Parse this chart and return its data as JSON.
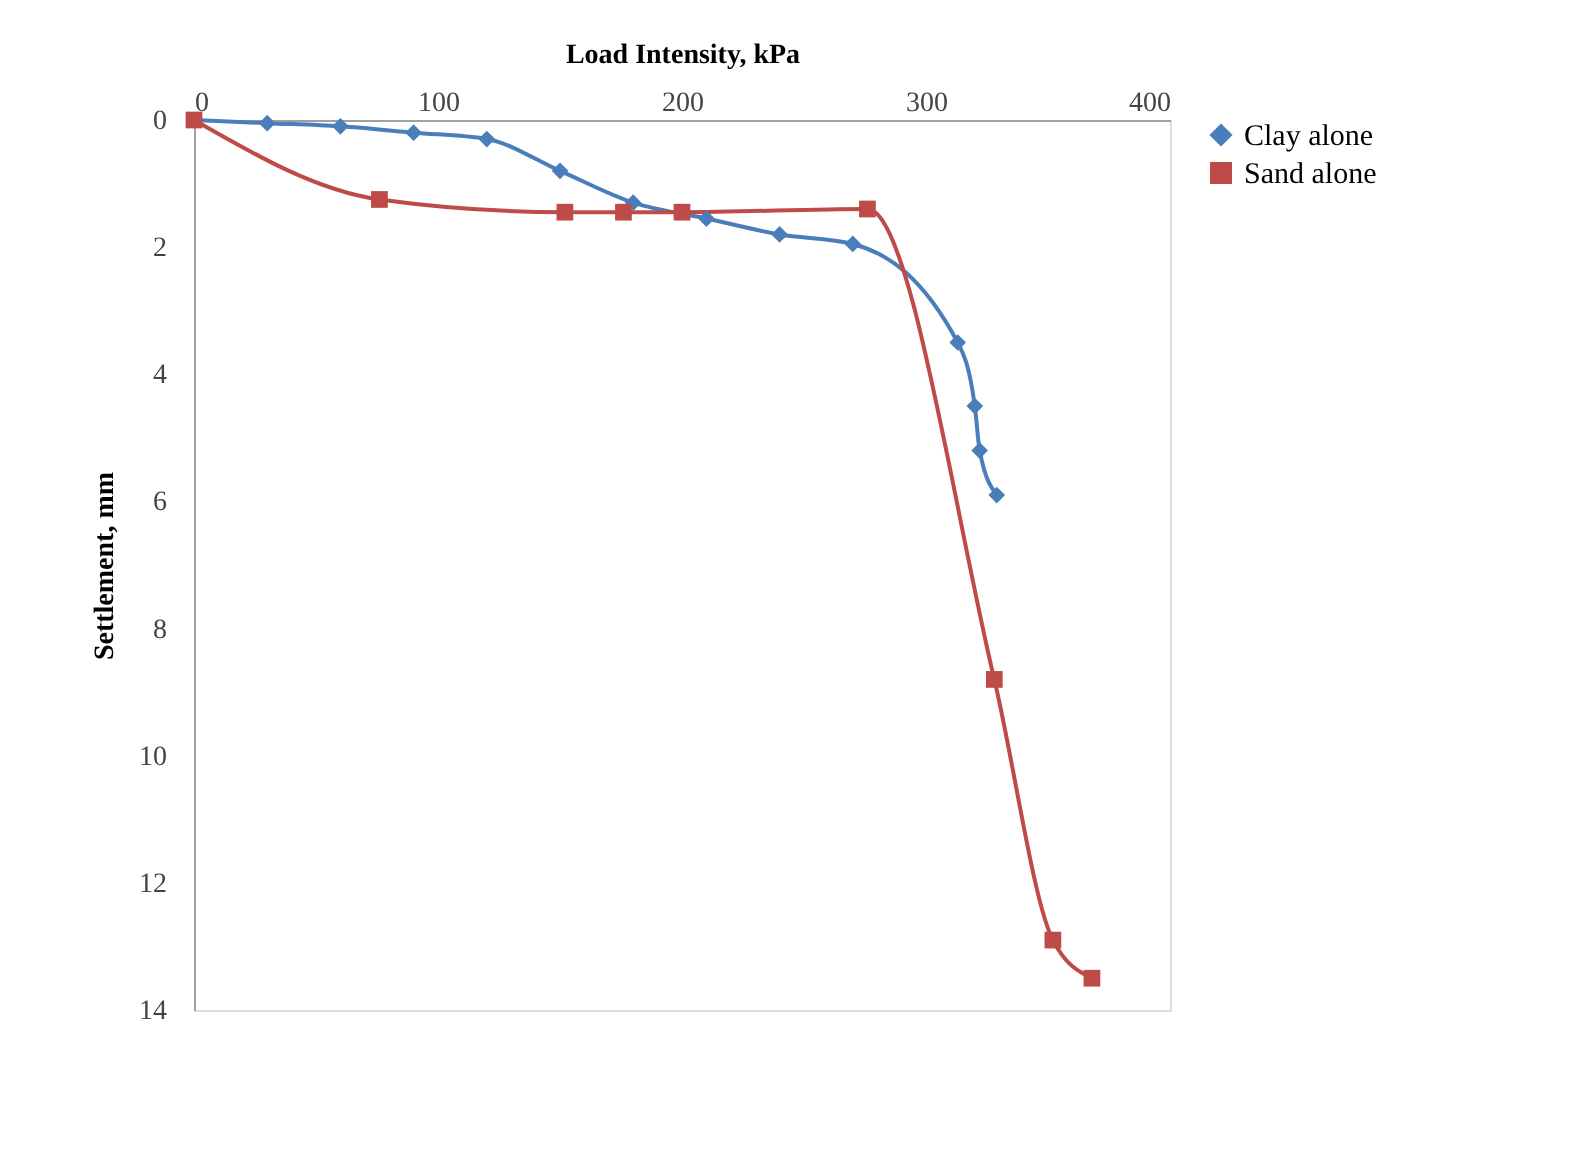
{
  "chart_data": {
    "type": "line",
    "xlabel": "Load Intensity, kPa",
    "ylabel": "Settlement, mm",
    "xlim": [
      0,
      400
    ],
    "xticks": [
      0,
      100,
      200,
      300,
      400
    ],
    "ylim": [
      14,
      0
    ],
    "yticks": [
      0,
      2,
      4,
      6,
      8,
      10,
      12,
      14
    ],
    "grid": false,
    "legend": "right",
    "line_style": "solid",
    "series": [
      {
        "name": "Clay alone",
        "color": "#4a7ebb",
        "marker": "diamond",
        "x": [
          0,
          30,
          60,
          90,
          120,
          150,
          180,
          210,
          240,
          270,
          313,
          320,
          322,
          329
        ],
        "values": [
          0,
          0.05,
          0.1,
          0.2,
          0.3,
          0.8,
          1.3,
          1.55,
          1.8,
          1.95,
          3.5,
          4.5,
          5.2,
          5.9
        ]
      },
      {
        "name": "Sand alone",
        "color": "#be4b48",
        "marker": "square",
        "x": [
          0,
          76,
          152,
          176,
          200,
          276,
          328,
          352,
          368
        ],
        "values": [
          0,
          1.25,
          1.45,
          1.45,
          1.45,
          1.4,
          8.8,
          12.9,
          13.5
        ]
      }
    ]
  }
}
